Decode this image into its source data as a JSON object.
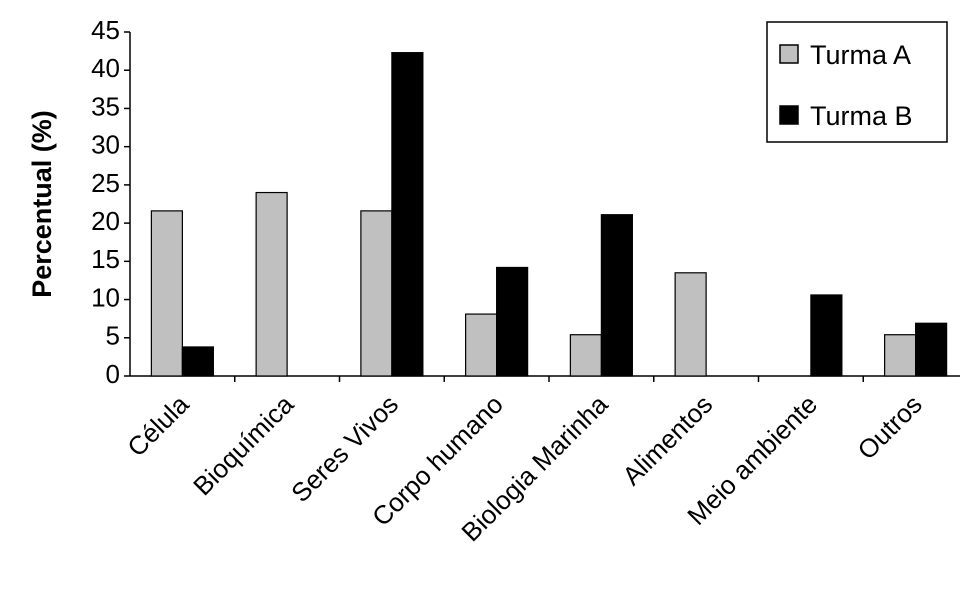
{
  "chart_data": {
    "type": "bar",
    "ylabel": "Percentual (%)",
    "xlabel": "",
    "ylim": [
      0,
      45
    ],
    "yticks": [
      0,
      5,
      10,
      15,
      20,
      25,
      30,
      35,
      40,
      45
    ],
    "grid": false,
    "legend_position": "top-right",
    "categories": [
      "Célula",
      "Bioquímica",
      "Seres Vivos",
      "Corpo humano",
      "Biologia Marinha",
      "Alimentos",
      "Meio ambiente",
      "Outros"
    ],
    "series": [
      {
        "name": "Turma A",
        "color": "#c0c0c0",
        "values": [
          21.6,
          24.0,
          21.6,
          8.1,
          5.4,
          13.5,
          0,
          5.4
        ]
      },
      {
        "name": "Turma B",
        "color": "#000000",
        "values": [
          3.8,
          0,
          42.3,
          14.2,
          21.1,
          0,
          10.6,
          6.9
        ]
      }
    ]
  }
}
